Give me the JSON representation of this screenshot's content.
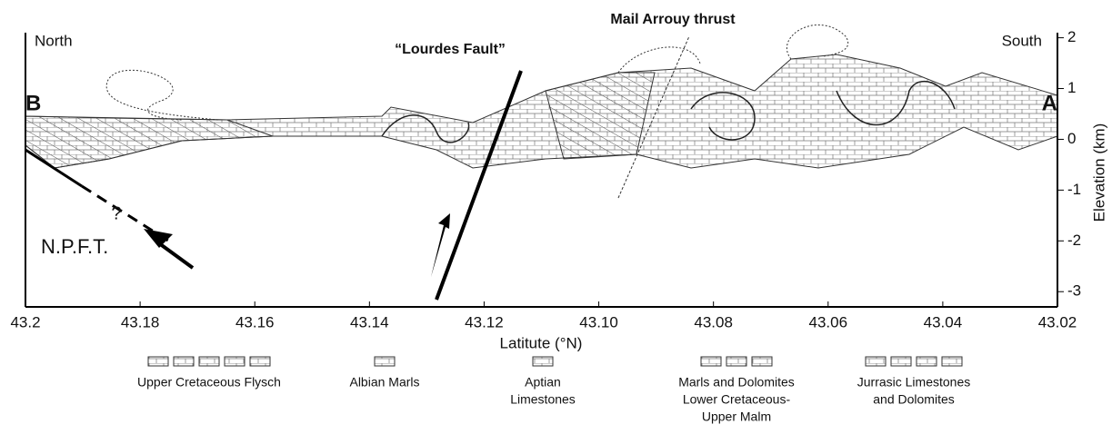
{
  "axes": {
    "xlabel": "Latitute (°N)",
    "ylabel": "Elevation (km)",
    "xlim": [
      43.2,
      43.02
    ],
    "xticks": [
      43.2,
      43.18,
      43.16,
      43.14,
      43.12,
      {
        "value": 43.1,
        "label": "43.10"
      },
      43.08,
      43.06,
      43.04,
      43.02
    ],
    "ylim": [
      -3.3,
      2.1
    ],
    "yticks": [
      2,
      1,
      0,
      -1,
      -2,
      -3
    ]
  },
  "annotations": {
    "north": "North",
    "south": "South",
    "end_b": "B",
    "end_a": "A",
    "lourdes": "“Lourdes Fault”",
    "mail_arrouy": "Mail Arrouy thrust",
    "question": "?",
    "npft": "N.P.F.T."
  },
  "legend": [
    {
      "label": [
        "Upper Cretaceous Flysch"
      ]
    },
    {
      "label": [
        "Albian Marls"
      ]
    },
    {
      "label": [
        "Aptian",
        "Limestones"
      ]
    },
    {
      "label": [
        "Marls and Dolomites",
        "Lower Cretaceous-",
        "Upper Malm"
      ]
    },
    {
      "label": [
        "Jurrasic Limestones",
        "and Dolomites"
      ]
    }
  ]
}
